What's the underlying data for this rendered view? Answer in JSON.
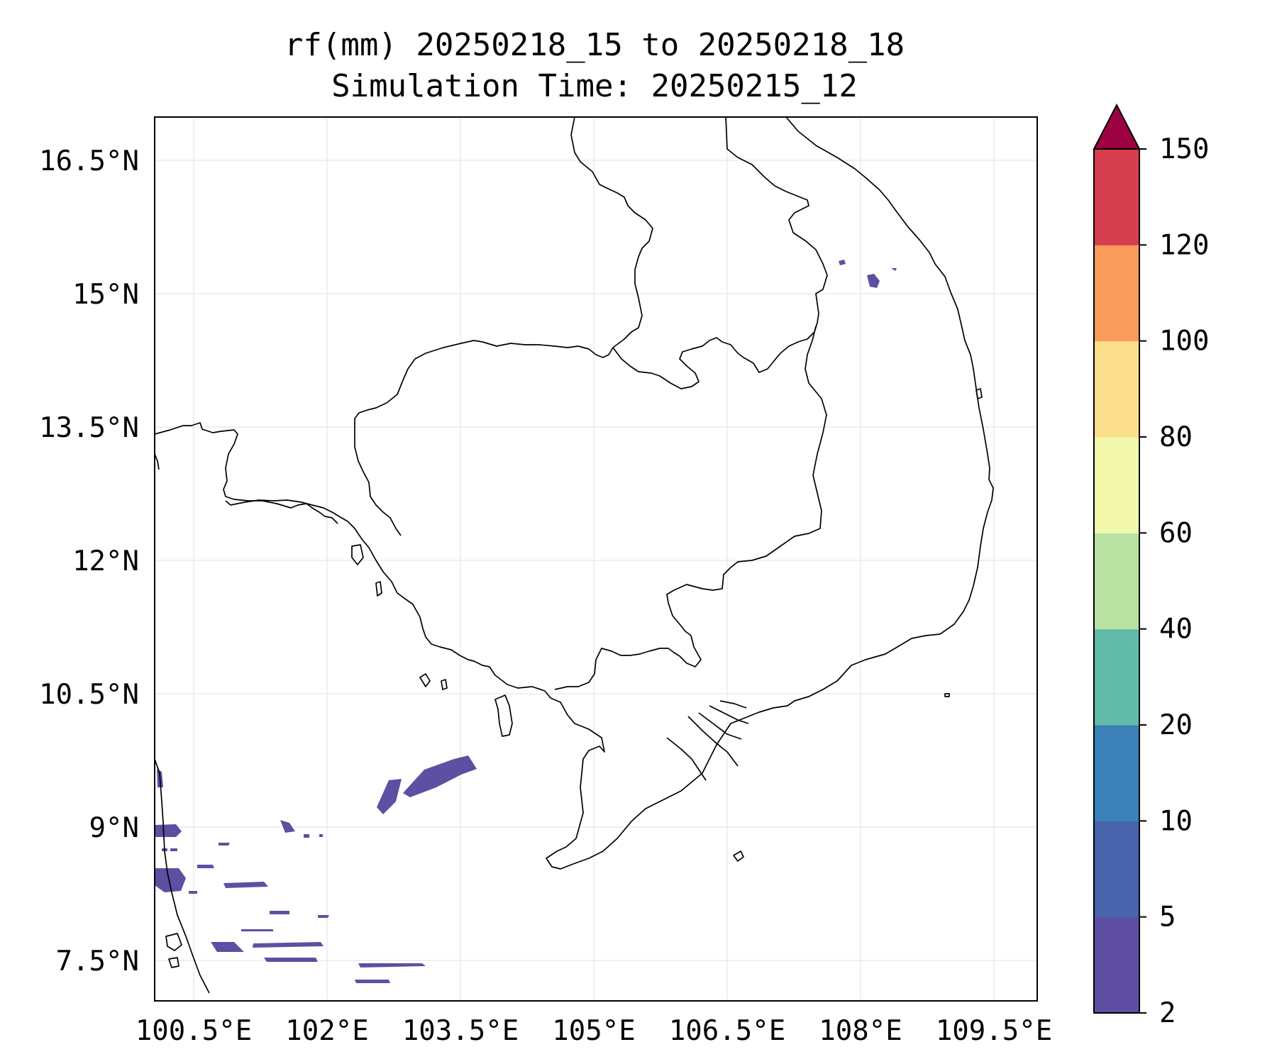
{
  "title_line1": "rf(mm) 20250218_15 to 20250218_18",
  "title_line2": "Simulation Time: 20250215_12",
  "map": {
    "x_ticks": [
      "100.5°E",
      "102°E",
      "103.5°E",
      "105°E",
      "106.5°E",
      "108°E",
      "109.5°E"
    ],
    "y_ticks": [
      "16.5°N",
      "15°N",
      "13.5°N",
      "12°N",
      "10.5°N",
      "9°N",
      "7.5°N"
    ],
    "grid": true
  },
  "colorbar": {
    "levels": [
      "2",
      "5",
      "10",
      "20",
      "40",
      "60",
      "80",
      "100",
      "120",
      "150"
    ],
    "colors": [
      "#5e4fa2",
      "#4a63ad",
      "#3a80b9",
      "#62bba8",
      "#b9e1a2",
      "#f1f8ac",
      "#fbdf8d",
      "#f89b5b",
      "#d63f4f",
      "#9e0142"
    ],
    "extend": "max"
  },
  "rain_color": "#5e4fa2"
}
